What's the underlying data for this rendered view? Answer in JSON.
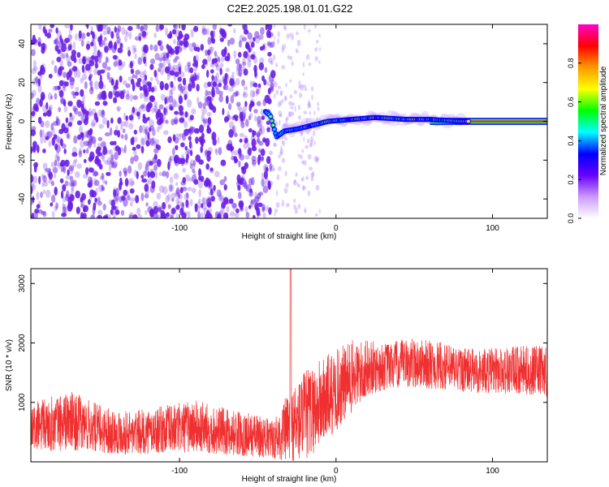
{
  "title": "C2E2.2025.198.01.01.G22",
  "chart_data": [
    {
      "type": "heatmap",
      "title": "",
      "xlabel": "Height of straight line (km)",
      "ylabel": "Frequency (Hz)",
      "xlim": [
        -195,
        135
      ],
      "ylim": [
        -50,
        50
      ],
      "x_ticks": [
        -100,
        0,
        100
      ],
      "y_ticks": [
        -40,
        -20,
        0,
        20,
        40
      ],
      "colorbar": {
        "label": "Normalized spectral amplitude",
        "range": [
          0,
          1
        ],
        "ticks": [
          0.0,
          0.2,
          0.4,
          0.6,
          0.8
        ],
        "colormap": [
          "#ffffff",
          "#cc99ff",
          "#6600ff",
          "#0000ff",
          "#00ffff",
          "#00ff00",
          "#ffff00",
          "#ff9900",
          "#ff0000",
          "#ff00cc"
        ]
      },
      "noise_region": {
        "x_range": [
          -195,
          -40
        ],
        "max_amplitude": 0.15,
        "color": "#6a1fe6"
      },
      "trace": {
        "description_points": [
          {
            "x": -45,
            "y": 5
          },
          {
            "x": -42,
            "y": 3
          },
          {
            "x": -38,
            "y": -8
          },
          {
            "x": -33,
            "y": -5
          },
          {
            "x": -25,
            "y": -4
          },
          {
            "x": -15,
            "y": -2
          },
          {
            "x": -5,
            "y": 0
          },
          {
            "x": 10,
            "y": 1
          },
          {
            "x": 25,
            "y": 2
          },
          {
            "x": 45,
            "y": 1
          },
          {
            "x": 60,
            "y": 1
          },
          {
            "x": 80,
            "y": 0
          },
          {
            "x": 135,
            "y": 0
          }
        ],
        "amplitude_low": 0.3,
        "amplitude_high": 0.95
      }
    },
    {
      "type": "line",
      "title": "",
      "xlabel": "Height of straight line (km)",
      "ylabel": "SNR (10 * v/v)",
      "xlim": [
        -195,
        135
      ],
      "ylim": [
        0,
        3250
      ],
      "x_ticks": [
        -100,
        0,
        100
      ],
      "y_ticks": [
        1000,
        2000,
        3000
      ],
      "color": "#f03030",
      "series": [
        {
          "name": "",
          "envelope_x": [
            -195,
            -170,
            -150,
            -130,
            -110,
            -90,
            -70,
            -50,
            -40,
            -30,
            -20,
            -10,
            0,
            10,
            20,
            30,
            50,
            70,
            90,
            110,
            135
          ],
          "envelope_low": [
            150,
            200,
            150,
            120,
            150,
            150,
            120,
            80,
            50,
            0,
            0,
            250,
            500,
            800,
            1100,
            1200,
            1250,
            1200,
            1150,
            1150,
            1100
          ],
          "envelope_high": [
            1000,
            1200,
            950,
            850,
            950,
            1050,
            900,
            800,
            700,
            1200,
            1550,
            1750,
            1900,
            2050,
            2050,
            2000,
            2100,
            2000,
            1900,
            1950,
            1950
          ]
        }
      ],
      "spike": {
        "x": -29,
        "y": 3250
      }
    }
  ]
}
